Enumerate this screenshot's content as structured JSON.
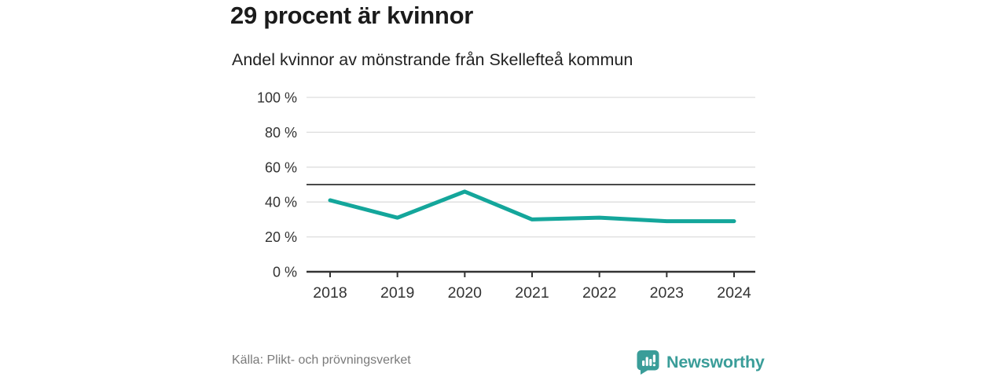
{
  "header": {
    "title": "29 procent är kvinnor",
    "subtitle": "Andel kvinnor av mönstrande från Skellefteå kommun"
  },
  "chart_data": {
    "type": "line",
    "x": [
      "2018",
      "2019",
      "2020",
      "2021",
      "2022",
      "2023",
      "2024"
    ],
    "series": [
      {
        "name": "Andel kvinnor",
        "values": [
          41,
          31,
          46,
          30,
          31,
          29,
          29
        ]
      }
    ],
    "title": "29 procent är kvinnor",
    "subtitle": "Andel kvinnor av mönstrande från Skellefteå kommun",
    "xlabel": "",
    "ylabel": "",
    "ylim": [
      0,
      100
    ],
    "yticks": [
      0,
      20,
      40,
      60,
      80,
      100
    ],
    "ytick_suffix": " %",
    "reference_line": {
      "value": 50
    },
    "grid": true,
    "legend": "none"
  },
  "footer": {
    "source": "Källa: Plikt- och prövningsverket",
    "brand": "Newsworthy"
  },
  "colors": {
    "line": "#14a69b",
    "brand": "#3a9d99",
    "grid": "#dddddd",
    "reference": "#4a4a4a",
    "axis": "#333333",
    "tick_text": "#333333",
    "title_text": "#1b1b1b",
    "muted_text": "#7a7a7a"
  }
}
